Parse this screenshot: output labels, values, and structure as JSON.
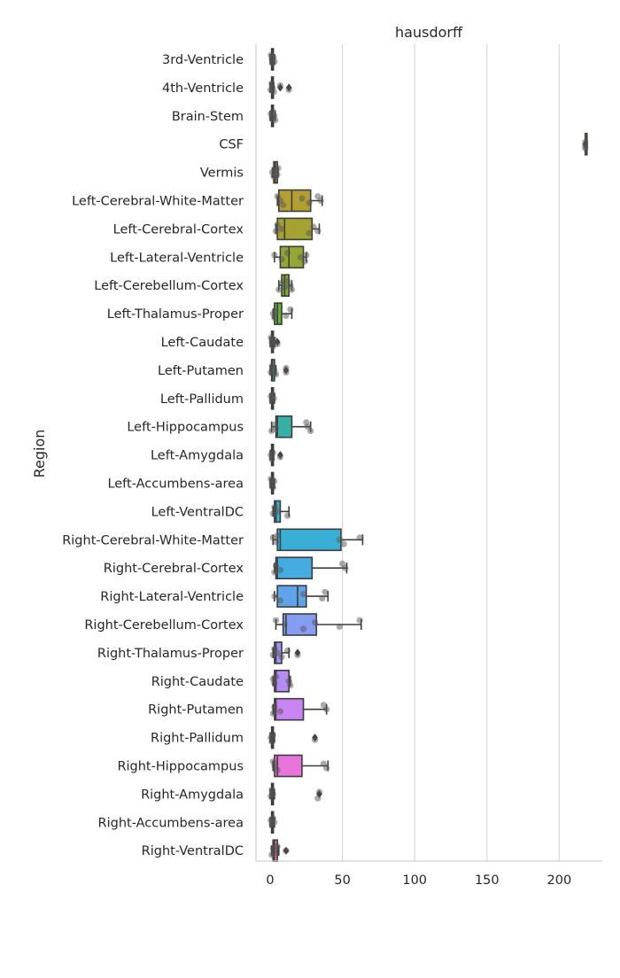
{
  "chart_data": {
    "type": "box",
    "title": "hausdorff",
    "xlabel": "",
    "ylabel": "Region",
    "xlim": [
      -10,
      230
    ],
    "xticks": [
      0,
      50,
      100,
      150,
      200
    ],
    "grid": "vertical",
    "categories": [
      "3rd-Ventricle",
      "4th-Ventricle",
      "Brain-Stem",
      "CSF",
      "Vermis",
      "Left-Cerebral-White-Matter",
      "Left-Cerebral-Cortex",
      "Left-Lateral-Ventricle",
      "Left-Cerebellum-Cortex",
      "Left-Thalamus-Proper",
      "Left-Caudate",
      "Left-Putamen",
      "Left-Pallidum",
      "Left-Hippocampus",
      "Left-Amygdala",
      "Left-Accumbens-area",
      "Left-VentralDC",
      "Right-Cerebral-White-Matter",
      "Right-Cerebral-Cortex",
      "Right-Lateral-Ventricle",
      "Right-Cerebellum-Cortex",
      "Right-Thalamus-Proper",
      "Right-Caudate",
      "Right-Putamen",
      "Right-Pallidum",
      "Right-Hippocampus",
      "Right-Amygdala",
      "Right-Accumbens-area",
      "Right-VentralDC"
    ],
    "colors": [
      "#e8798d",
      "#e47f78",
      "#e28a5a",
      "#d49137",
      "#c39a32",
      "#b39f32",
      "#a4a332",
      "#93a832",
      "#7fad32",
      "#5eb333",
      "#33b55a",
      "#34b37f",
      "#35b195",
      "#36b0a6",
      "#37afb4",
      "#39afc0",
      "#3ab0cc",
      "#3aafd6",
      "#44acdf",
      "#5fa3e9",
      "#859cf0",
      "#a093f3",
      "#b38cf4",
      "#c986f2",
      "#dc7ded",
      "#e876da",
      "#f075c5",
      "#f076b0",
      "#ee779c"
    ],
    "boxes": [
      {
        "whislo": 0,
        "q1": 1,
        "med": 1.5,
        "q3": 2,
        "whishi": 3,
        "fliers": []
      },
      {
        "whislo": 0,
        "q1": 1,
        "med": 1.5,
        "q3": 2,
        "whishi": 2.5,
        "fliers": [
          7,
          13
        ]
      },
      {
        "whislo": 0,
        "q1": 1,
        "med": 1.5,
        "q3": 2,
        "whishi": 3.5,
        "fliers": []
      },
      {
        "whislo": 218,
        "q1": 218,
        "med": 218,
        "q3": 218,
        "whishi": 218,
        "fliers": [
          218
        ]
      },
      {
        "whislo": 1.5,
        "q1": 2.5,
        "med": 3.5,
        "q3": 5,
        "whishi": 5.5,
        "fliers": []
      },
      {
        "whislo": 5,
        "q1": 6,
        "med": 15,
        "q3": 28,
        "whishi": 36,
        "fliers": []
      },
      {
        "whislo": 4,
        "q1": 5,
        "med": 10,
        "q3": 29,
        "whishi": 34,
        "fliers": []
      },
      {
        "whislo": 3,
        "q1": 7,
        "med": 13,
        "q3": 23,
        "whishi": 25,
        "fliers": []
      },
      {
        "whislo": 6,
        "q1": 8,
        "med": 10,
        "q3": 13,
        "whishi": 15,
        "fliers": []
      },
      {
        "whislo": 2,
        "q1": 3,
        "med": 5,
        "q3": 8,
        "whishi": 15,
        "fliers": []
      },
      {
        "whislo": 0,
        "q1": 1,
        "med": 1.5,
        "q3": 2,
        "whishi": 3,
        "fliers": [
          5
        ]
      },
      {
        "whislo": 0,
        "q1": 1,
        "med": 1.5,
        "q3": 3,
        "whishi": 4,
        "fliers": [
          11
        ]
      },
      {
        "whislo": 0,
        "q1": 1,
        "med": 1.5,
        "q3": 2,
        "whishi": 3,
        "fliers": []
      },
      {
        "whislo": 1,
        "q1": 4,
        "med": 5,
        "q3": 15,
        "whishi": 28,
        "fliers": []
      },
      {
        "whislo": 0,
        "q1": 1,
        "med": 1.5,
        "q3": 2,
        "whishi": 2.5,
        "fliers": [
          7
        ]
      },
      {
        "whislo": 0,
        "q1": 1,
        "med": 1.5,
        "q3": 2,
        "whishi": 3,
        "fliers": []
      },
      {
        "whislo": 2,
        "q1": 3,
        "med": 4,
        "q3": 7,
        "whishi": 13,
        "fliers": []
      },
      {
        "whislo": 2,
        "q1": 5,
        "med": 7,
        "q3": 49,
        "whishi": 64,
        "fliers": []
      },
      {
        "whislo": 3,
        "q1": 4,
        "med": 5,
        "q3": 29,
        "whishi": 53,
        "fliers": []
      },
      {
        "whislo": 3,
        "q1": 5,
        "med": 19,
        "q3": 25,
        "whishi": 40,
        "fliers": []
      },
      {
        "whislo": 4,
        "q1": 9,
        "med": 11,
        "q3": 32,
        "whishi": 63,
        "fliers": []
      },
      {
        "whislo": 2,
        "q1": 3,
        "med": 4,
        "q3": 8,
        "whishi": 13,
        "fliers": [
          19
        ]
      },
      {
        "whislo": 2,
        "q1": 3,
        "med": 4,
        "q3": 13,
        "whishi": 14,
        "fliers": []
      },
      {
        "whislo": 2,
        "q1": 3,
        "med": 4,
        "q3": 23,
        "whishi": 39,
        "fliers": []
      },
      {
        "whislo": 0,
        "q1": 1,
        "med": 1.5,
        "q3": 2,
        "whishi": 3,
        "fliers": [
          31
        ]
      },
      {
        "whislo": 2,
        "q1": 3,
        "med": 5,
        "q3": 22,
        "whishi": 40,
        "fliers": []
      },
      {
        "whislo": 0,
        "q1": 1,
        "med": 1.5,
        "q3": 2,
        "whishi": 3,
        "fliers": [
          34
        ]
      },
      {
        "whislo": 0,
        "q1": 1,
        "med": 1.5,
        "q3": 2,
        "whishi": 3,
        "fliers": []
      },
      {
        "whislo": 1,
        "q1": 2,
        "med": 3,
        "q3": 5,
        "whishi": 6,
        "fliers": [
          11
        ]
      }
    ],
    "points": [
      [
        0.5,
        1.2,
        1.8,
        2.4,
        3.0
      ],
      [
        0.3,
        1.0,
        1.8,
        2.5,
        7,
        13
      ],
      [
        0.5,
        1.2,
        2.0,
        3.0,
        3.5
      ],
      [
        218,
        218,
        218
      ],
      [
        1.5,
        2.5,
        3.5,
        5.0,
        5.5
      ],
      [
        5,
        7,
        9,
        22,
        27,
        33,
        35
      ],
      [
        4,
        5,
        8,
        27,
        30,
        33
      ],
      [
        3,
        8,
        12,
        21,
        24,
        25
      ],
      [
        6,
        8,
        10,
        12,
        14,
        15
      ],
      [
        2,
        3,
        4,
        11,
        14
      ],
      [
        0.5,
        1.2,
        2.0,
        3.0,
        5
      ],
      [
        0.5,
        1.5,
        3.0,
        4.0,
        11,
        11
      ],
      [
        0.5,
        1.2,
        1.8,
        2.6
      ],
      [
        1,
        3,
        4,
        25,
        26,
        28
      ],
      [
        0.5,
        1.2,
        2.0,
        7
      ],
      [
        0.5,
        1.2,
        2.0,
        2.8
      ],
      [
        2,
        3,
        5,
        12
      ],
      [
        2,
        4,
        5,
        48,
        51,
        62
      ],
      [
        3,
        4,
        7,
        50,
        52
      ],
      [
        3,
        7,
        23,
        36,
        38
      ],
      [
        4,
        10,
        23,
        31,
        48,
        62
      ],
      [
        2,
        3,
        5,
        8,
        12,
        19
      ],
      [
        2,
        3,
        4,
        13,
        14
      ],
      [
        2,
        3,
        7,
        37,
        39
      ],
      [
        0.5,
        1.2,
        2.0,
        31
      ],
      [
        2,
        3,
        5,
        37,
        39
      ],
      [
        0.5,
        1.2,
        2.0,
        33,
        34
      ],
      [
        0.5,
        1.2,
        2.0,
        2.8
      ],
      [
        1,
        2,
        3,
        5,
        11
      ]
    ]
  }
}
